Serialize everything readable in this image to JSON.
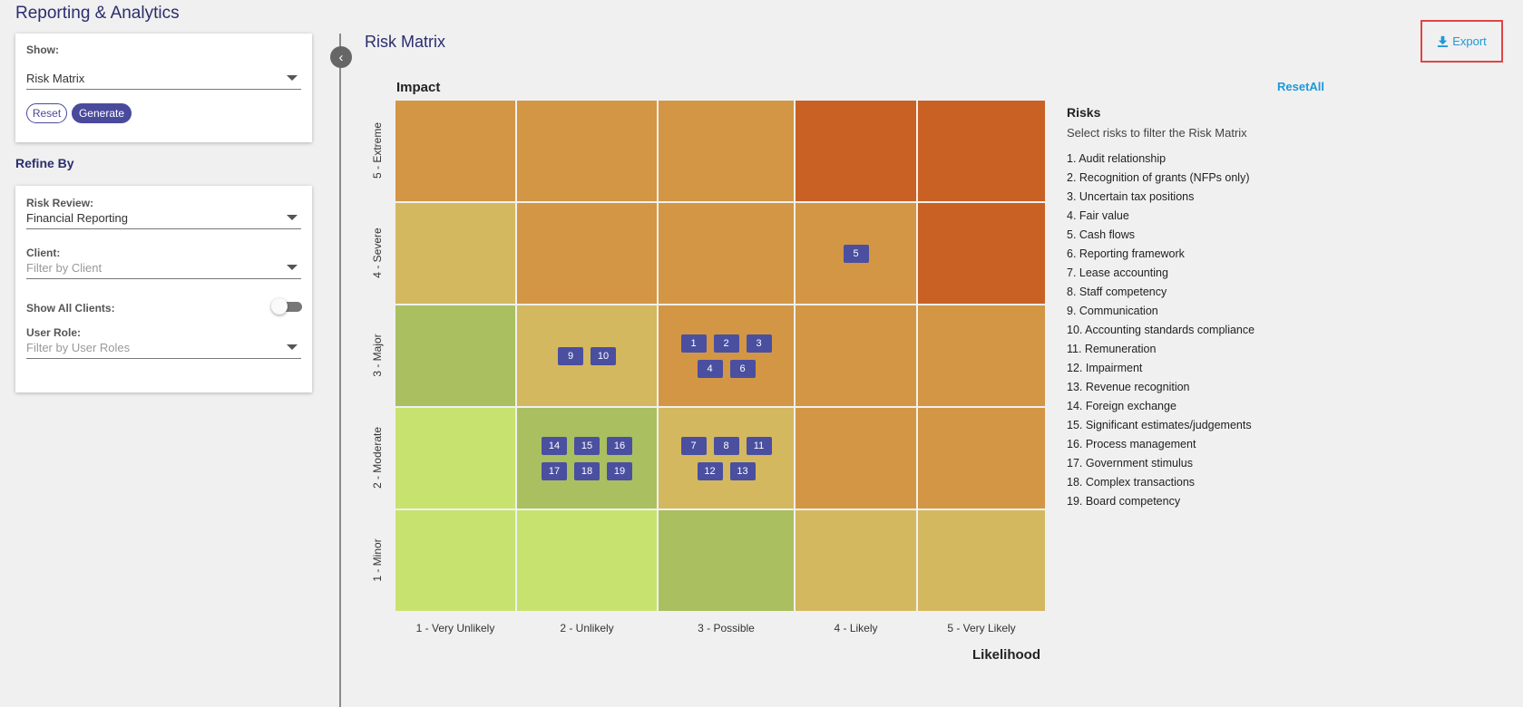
{
  "app": {
    "title": "Reporting & Analytics"
  },
  "show_panel": {
    "label": "Show:",
    "selected": "Risk Matrix",
    "reset_label": "Reset",
    "generate_label": "Generate"
  },
  "refine": {
    "title": "Refine By",
    "risk_review": {
      "label": "Risk Review:",
      "value": "Financial Reporting"
    },
    "client": {
      "label": "Client:",
      "placeholder": "Filter by Client"
    },
    "show_all_clients": {
      "label": "Show All Clients:",
      "on": false
    },
    "user_role": {
      "label": "User Role:",
      "placeholder": "Filter by User Roles"
    }
  },
  "main": {
    "title": "Risk Matrix",
    "export_label": "Export",
    "export_icon": "download-icon",
    "reset_all_label": "ResetAll"
  },
  "matrix": {
    "y_axis_title": "Impact",
    "x_axis_title": "Likelihood",
    "impact_levels": [
      "5 - Extreme",
      "4 - Severe",
      "3 - Major",
      "2 - Moderate",
      "1 - Minor"
    ],
    "likelihood_levels": [
      "1 - Very Unlikely",
      "2 - Unlikely",
      "3 - Possible",
      "4 - Likely",
      "5 - Very Likely"
    ],
    "cell_colors": [
      [
        "#d39645",
        "#d39645",
        "#d39645",
        "#c96124",
        "#c96124"
      ],
      [
        "#d4b85f",
        "#d39645",
        "#d39645",
        "#d39645",
        "#c96124"
      ],
      [
        "#aabf60",
        "#d4b85f",
        "#d39645",
        "#d39645",
        "#d39645"
      ],
      [
        "#c8e26f",
        "#aabf60",
        "#d4b85f",
        "#d39645",
        "#d39645"
      ],
      [
        "#c8e26f",
        "#c8e26f",
        "#aabf60",
        "#d4b85f",
        "#d4b85f"
      ]
    ],
    "cells": [
      {
        "impact": 4,
        "likelihood": 4,
        "risks": [
          "5"
        ]
      },
      {
        "impact": 3,
        "likelihood": 2,
        "risks": [
          "9",
          "10"
        ]
      },
      {
        "impact": 3,
        "likelihood": 3,
        "risks": [
          "1",
          "2",
          "3",
          "4",
          "6"
        ]
      },
      {
        "impact": 2,
        "likelihood": 2,
        "risks": [
          "14",
          "15",
          "16",
          "17",
          "18",
          "19"
        ]
      },
      {
        "impact": 2,
        "likelihood": 3,
        "risks": [
          "7",
          "8",
          "11",
          "12",
          "13"
        ]
      }
    ]
  },
  "risks": {
    "title": "Risks",
    "subtitle": "Select risks to filter the Risk Matrix",
    "items": [
      "1. Audit relationship",
      "2. Recognition of grants (NFPs only)",
      "3. Uncertain tax positions",
      "4. Fair value",
      "5. Cash flows",
      "6. Reporting framework",
      "7. Lease accounting",
      "8. Staff competency",
      "9. Communication",
      "10. Accounting standards compliance",
      "11. Remuneration",
      "12. Impairment",
      "13. Revenue recognition",
      "14. Foreign exchange",
      "15. Significant estimates/judgements",
      "16. Process management",
      "17. Government stimulus",
      "18. Complex transactions",
      "19. Board competency"
    ]
  }
}
